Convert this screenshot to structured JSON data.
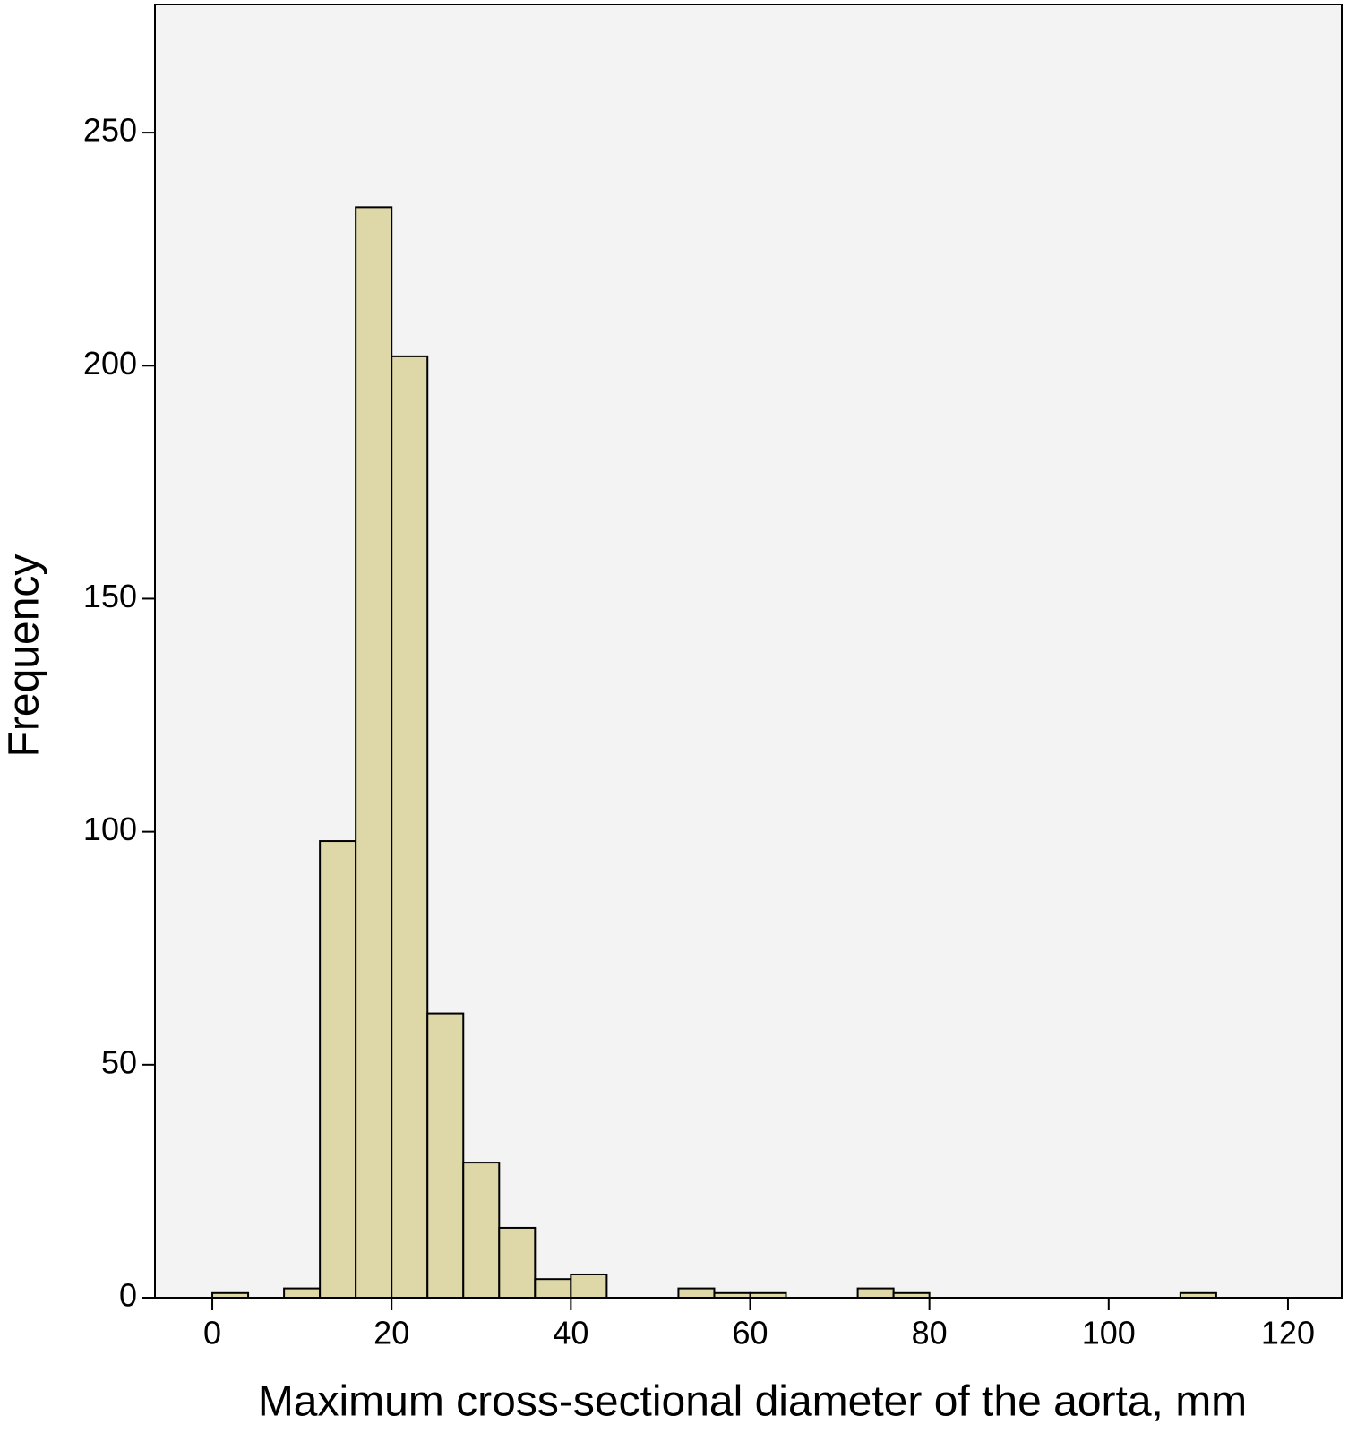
{
  "chart_data": {
    "type": "histogram",
    "x_label": "Maximum cross-sectional diameter of the aorta, mm",
    "y_label": "Frequency",
    "bins": [
      0,
      4,
      8,
      12,
      16,
      20,
      24,
      28,
      32,
      36,
      40,
      44,
      48,
      52,
      56,
      60,
      64,
      68,
      72,
      76,
      80,
      84,
      88,
      92,
      96,
      100,
      104,
      108,
      112
    ],
    "values": [
      1,
      0,
      2,
      98,
      234,
      202,
      61,
      29,
      15,
      4,
      5,
      0,
      0,
      2,
      1,
      1,
      0,
      0,
      2,
      1,
      0,
      0,
      0,
      0,
      0,
      0,
      0,
      1
    ],
    "color": "#ded8a9",
    "xlim": [
      -6.4,
      126
    ],
    "ylim": [
      0,
      277.5
    ],
    "xticks": [
      0,
      20,
      40,
      60,
      80,
      100,
      120
    ],
    "yticks": [
      0,
      50,
      100,
      150,
      200,
      250
    ]
  }
}
